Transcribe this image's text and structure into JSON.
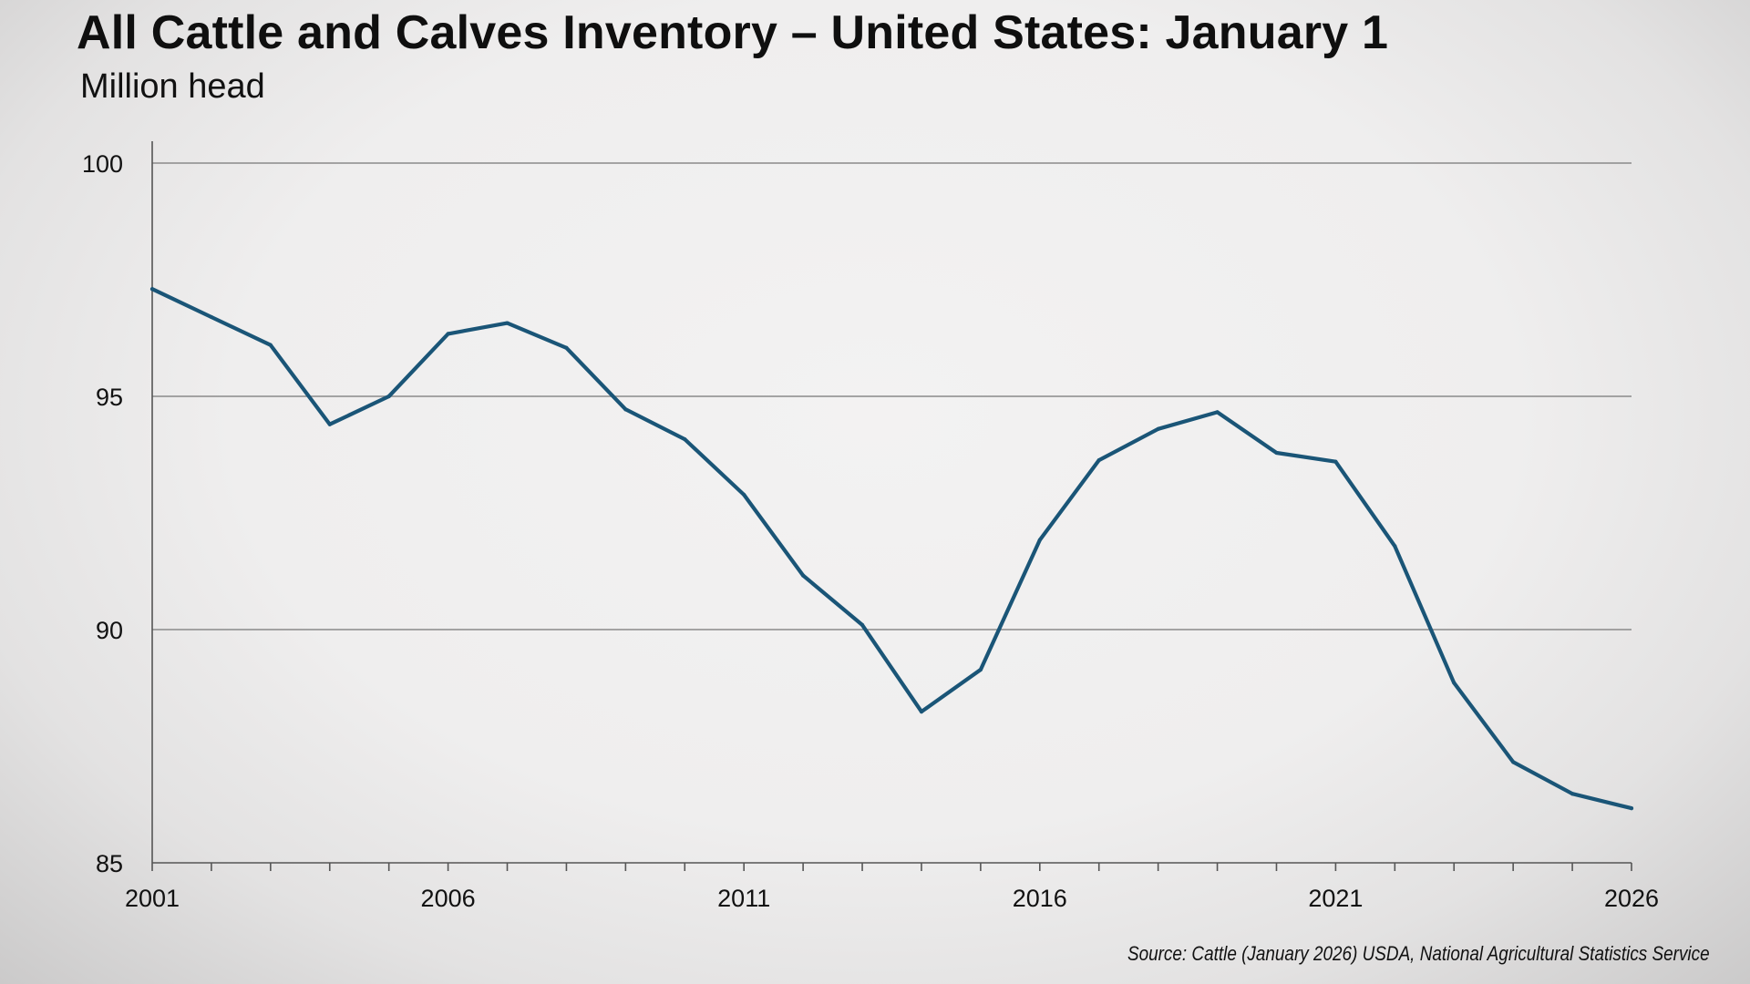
{
  "colors": {
    "line": "#1a5577",
    "grid": "#8a8a8a",
    "axis": "#555555",
    "text": "#111111"
  },
  "chart_data": {
    "type": "line",
    "title": "All Cattle and Calves Inventory – United States: January 1",
    "subtitle": "Million head",
    "xlabel": "",
    "ylabel": "",
    "source": "Source: Cattle (January 2026) USDA, National Agricultural Statistics Service",
    "x": [
      2001,
      2002,
      2003,
      2004,
      2005,
      2006,
      2007,
      2008,
      2009,
      2010,
      2011,
      2012,
      2013,
      2014,
      2015,
      2016,
      2017,
      2018,
      2019,
      2020,
      2021,
      2022,
      2023,
      2024,
      2025,
      2026
    ],
    "series": [
      {
        "values": [
          97.3,
          96.7,
          96.1,
          94.4,
          95.0,
          96.34,
          96.57,
          96.04,
          94.72,
          94.08,
          92.89,
          91.16,
          90.1,
          88.24,
          89.14,
          91.92,
          93.63,
          94.3,
          94.66,
          93.79,
          93.6,
          91.79,
          88.86,
          87.16,
          86.48,
          86.17
        ]
      }
    ],
    "xlim": [
      2001,
      2026
    ],
    "ylim": [
      85,
      100
    ],
    "xticks": [
      2001,
      2006,
      2011,
      2016,
      2021,
      2026
    ],
    "xtick_labels": [
      "2001",
      "2006",
      "2011",
      "2016",
      "2021",
      "2026"
    ],
    "yticks": [
      85,
      90,
      95,
      100
    ],
    "ytick_labels": [
      "85",
      "90",
      "95",
      "100"
    ],
    "grid": "horizontal",
    "legend": "none"
  }
}
